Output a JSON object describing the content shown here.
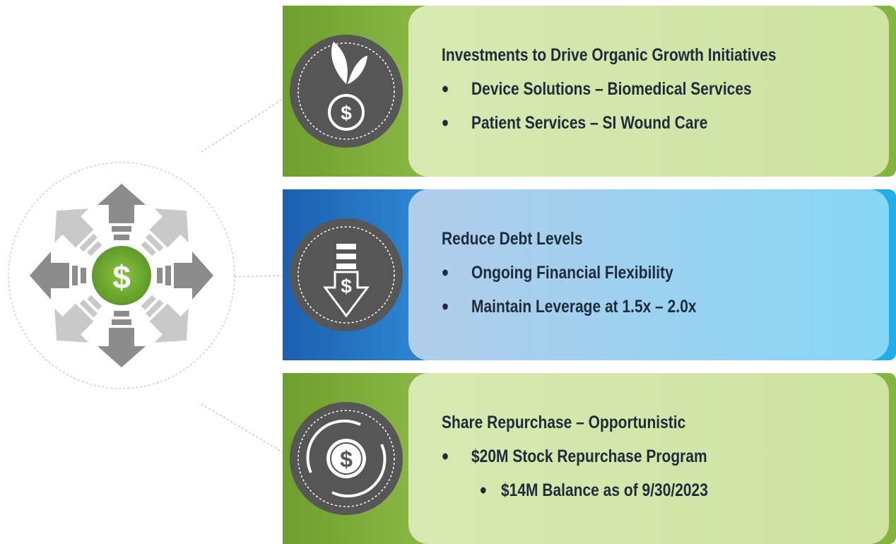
{
  "symbol": "$",
  "panels": [
    {
      "heading": "Investments to Drive Organic Growth Initiatives",
      "bullets": [
        {
          "text": "Device Solutions – Biomedical Services"
        },
        {
          "text": "Patient Services – SI Wound Care"
        }
      ]
    },
    {
      "heading": "Reduce Debt Levels",
      "bullets": [
        {
          "text": "Ongoing Financial Flexibility"
        },
        {
          "text": "Maintain Leverage at 1.5x – 2.0x"
        }
      ]
    },
    {
      "heading": "Share Repurchase – Opportunistic",
      "bullets": [
        {
          "text": "$20M Stock Repurchase Program",
          "sub": [
            "$14M Balance as of 9/30/2023"
          ]
        }
      ]
    }
  ]
}
